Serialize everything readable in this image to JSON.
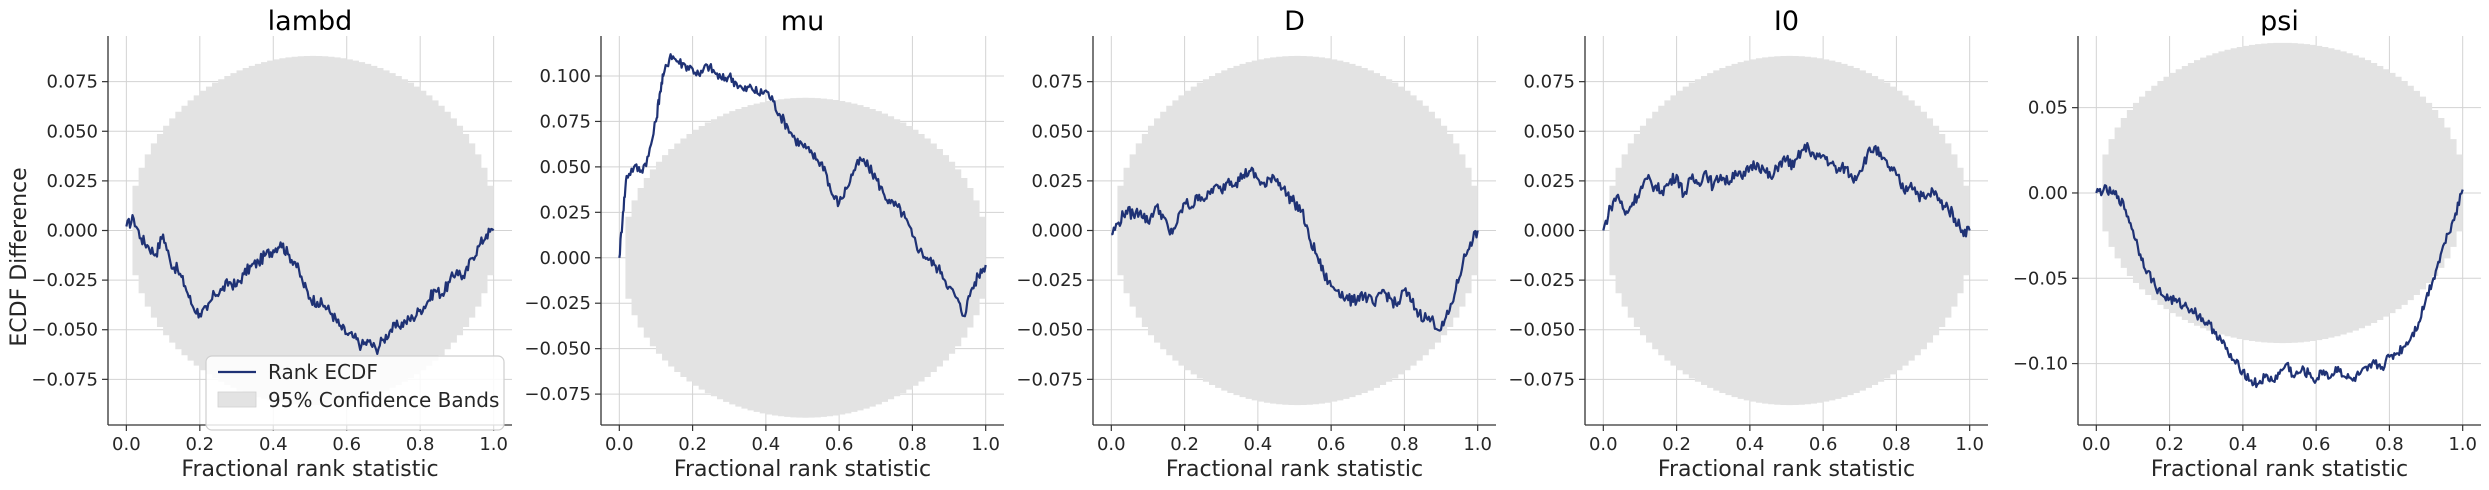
{
  "colors": {
    "ecdf": "#1f3275",
    "band": "#e3e3e3",
    "grid": "#d3d3d3"
  },
  "chart_data": {
    "type": "line",
    "shared_ylabel": "ECDF Difference",
    "xlabel": "Fractional rank statistic",
    "xlim": [
      -0.05,
      1.05
    ],
    "xticks": [
      0.0,
      0.2,
      0.4,
      0.6,
      0.8,
      1.0
    ],
    "xtick_labels": [
      "0.0",
      "0.2",
      "0.4",
      "0.6",
      "0.8",
      "1.0"
    ],
    "legend": {
      "placement": "lower-right",
      "entries": [
        "Rank ECDF",
        "95% Confidence Bands"
      ]
    },
    "panels": [
      {
        "title": "lambd",
        "ylim": [
          -0.098,
          0.098
        ],
        "yticks": [
          -0.075,
          -0.05,
          -0.025,
          0.0,
          0.025,
          0.05,
          0.075
        ],
        "ytick_labels": [
          "−0.075",
          "−0.050",
          "−0.025",
          "0.000",
          "0.025",
          "0.050",
          "0.075"
        ],
        "band_halfwidth": 0.088,
        "band_center": [
          [
            0.0,
            0.0
          ],
          [
            1.0,
            0.0
          ]
        ],
        "ecdf": [
          [
            0.0,
            0.002
          ],
          [
            0.02,
            0.006
          ],
          [
            0.04,
            -0.004
          ],
          [
            0.06,
            -0.008
          ],
          [
            0.08,
            -0.012
          ],
          [
            0.1,
            -0.002
          ],
          [
            0.12,
            -0.016
          ],
          [
            0.14,
            -0.02
          ],
          [
            0.16,
            -0.028
          ],
          [
            0.18,
            -0.038
          ],
          [
            0.2,
            -0.042
          ],
          [
            0.22,
            -0.04
          ],
          [
            0.24,
            -0.032
          ],
          [
            0.26,
            -0.03
          ],
          [
            0.28,
            -0.026
          ],
          [
            0.3,
            -0.028
          ],
          [
            0.32,
            -0.022
          ],
          [
            0.34,
            -0.018
          ],
          [
            0.36,
            -0.016
          ],
          [
            0.38,
            -0.012
          ],
          [
            0.4,
            -0.01
          ],
          [
            0.42,
            -0.006
          ],
          [
            0.44,
            -0.012
          ],
          [
            0.46,
            -0.016
          ],
          [
            0.48,
            -0.026
          ],
          [
            0.5,
            -0.034
          ],
          [
            0.52,
            -0.036
          ],
          [
            0.54,
            -0.038
          ],
          [
            0.56,
            -0.042
          ],
          [
            0.58,
            -0.048
          ],
          [
            0.6,
            -0.052
          ],
          [
            0.62,
            -0.054
          ],
          [
            0.64,
            -0.058
          ],
          [
            0.66,
            -0.056
          ],
          [
            0.68,
            -0.06
          ],
          [
            0.7,
            -0.055
          ],
          [
            0.72,
            -0.05
          ],
          [
            0.74,
            -0.048
          ],
          [
            0.76,
            -0.046
          ],
          [
            0.78,
            -0.044
          ],
          [
            0.8,
            -0.04
          ],
          [
            0.82,
            -0.036
          ],
          [
            0.84,
            -0.03
          ],
          [
            0.86,
            -0.032
          ],
          [
            0.88,
            -0.026
          ],
          [
            0.9,
            -0.02
          ],
          [
            0.92,
            -0.024
          ],
          [
            0.94,
            -0.014
          ],
          [
            0.96,
            -0.008
          ],
          [
            0.98,
            -0.002
          ],
          [
            1.0,
            0.0
          ]
        ]
      },
      {
        "title": "mu",
        "ylim": [
          -0.092,
          0.122
        ],
        "yticks": [
          -0.075,
          -0.05,
          -0.025,
          0.0,
          0.025,
          0.05,
          0.075,
          0.1
        ],
        "ytick_labels": [
          "−0.075",
          "−0.050",
          "−0.025",
          "0.000",
          "0.025",
          "0.050",
          "0.075",
          "0.100"
        ],
        "band_halfwidth": 0.088,
        "band_center": [
          [
            0.0,
            0.0
          ],
          [
            1.0,
            0.0
          ]
        ],
        "ecdf": [
          [
            0.0,
            0.0
          ],
          [
            0.01,
            0.025
          ],
          [
            0.02,
            0.045
          ],
          [
            0.04,
            0.05
          ],
          [
            0.06,
            0.048
          ],
          [
            0.08,
            0.056
          ],
          [
            0.1,
            0.075
          ],
          [
            0.11,
            0.09
          ],
          [
            0.12,
            0.1
          ],
          [
            0.14,
            0.112
          ],
          [
            0.16,
            0.108
          ],
          [
            0.18,
            0.106
          ],
          [
            0.2,
            0.104
          ],
          [
            0.22,
            0.1
          ],
          [
            0.24,
            0.106
          ],
          [
            0.26,
            0.102
          ],
          [
            0.28,
            0.098
          ],
          [
            0.3,
            0.1
          ],
          [
            0.32,
            0.096
          ],
          [
            0.34,
            0.092
          ],
          [
            0.36,
            0.094
          ],
          [
            0.38,
            0.09
          ],
          [
            0.4,
            0.092
          ],
          [
            0.42,
            0.086
          ],
          [
            0.44,
            0.078
          ],
          [
            0.46,
            0.072
          ],
          [
            0.48,
            0.065
          ],
          [
            0.5,
            0.062
          ],
          [
            0.52,
            0.058
          ],
          [
            0.54,
            0.054
          ],
          [
            0.56,
            0.05
          ],
          [
            0.58,
            0.035
          ],
          [
            0.6,
            0.03
          ],
          [
            0.62,
            0.038
          ],
          [
            0.64,
            0.048
          ],
          [
            0.66,
            0.054
          ],
          [
            0.68,
            0.05
          ],
          [
            0.7,
            0.044
          ],
          [
            0.72,
            0.036
          ],
          [
            0.74,
            0.03
          ],
          [
            0.76,
            0.028
          ],
          [
            0.78,
            0.022
          ],
          [
            0.8,
            0.012
          ],
          [
            0.82,
            0.004
          ],
          [
            0.84,
            0.0
          ],
          [
            0.86,
            -0.004
          ],
          [
            0.88,
            -0.008
          ],
          [
            0.9,
            -0.016
          ],
          [
            0.92,
            -0.022
          ],
          [
            0.94,
            -0.032
          ],
          [
            0.96,
            -0.018
          ],
          [
            0.98,
            -0.01
          ],
          [
            1.0,
            -0.004
          ]
        ]
      },
      {
        "title": "D",
        "ylim": [
          -0.098,
          0.098
        ],
        "yticks": [
          -0.075,
          -0.05,
          -0.025,
          0.0,
          0.025,
          0.05,
          0.075
        ],
        "ytick_labels": [
          "−0.075",
          "−0.050",
          "−0.025",
          "0.000",
          "0.025",
          "0.050",
          "0.075"
        ],
        "band_halfwidth": 0.088,
        "band_center": [
          [
            0.0,
            0.0
          ],
          [
            1.0,
            0.0
          ]
        ],
        "ecdf": [
          [
            0.0,
            -0.002
          ],
          [
            0.02,
            0.004
          ],
          [
            0.04,
            0.01
          ],
          [
            0.06,
            0.008
          ],
          [
            0.08,
            0.01
          ],
          [
            0.1,
            0.004
          ],
          [
            0.12,
            0.012
          ],
          [
            0.14,
            0.008
          ],
          [
            0.16,
            -0.002
          ],
          [
            0.18,
            0.004
          ],
          [
            0.2,
            0.014
          ],
          [
            0.22,
            0.012
          ],
          [
            0.24,
            0.018
          ],
          [
            0.26,
            0.016
          ],
          [
            0.28,
            0.022
          ],
          [
            0.3,
            0.02
          ],
          [
            0.32,
            0.026
          ],
          [
            0.34,
            0.024
          ],
          [
            0.36,
            0.028
          ],
          [
            0.38,
            0.03
          ],
          [
            0.4,
            0.026
          ],
          [
            0.42,
            0.022
          ],
          [
            0.44,
            0.028
          ],
          [
            0.46,
            0.024
          ],
          [
            0.48,
            0.018
          ],
          [
            0.5,
            0.014
          ],
          [
            0.52,
            0.01
          ],
          [
            0.54,
            -0.004
          ],
          [
            0.56,
            -0.012
          ],
          [
            0.58,
            -0.022
          ],
          [
            0.6,
            -0.028
          ],
          [
            0.62,
            -0.03
          ],
          [
            0.64,
            -0.034
          ],
          [
            0.66,
            -0.036
          ],
          [
            0.68,
            -0.032
          ],
          [
            0.7,
            -0.034
          ],
          [
            0.72,
            -0.038
          ],
          [
            0.74,
            -0.03
          ],
          [
            0.76,
            -0.034
          ],
          [
            0.78,
            -0.038
          ],
          [
            0.8,
            -0.03
          ],
          [
            0.82,
            -0.036
          ],
          [
            0.84,
            -0.042
          ],
          [
            0.86,
            -0.044
          ],
          [
            0.88,
            -0.046
          ],
          [
            0.9,
            -0.05
          ],
          [
            0.92,
            -0.042
          ],
          [
            0.94,
            -0.03
          ],
          [
            0.96,
            -0.016
          ],
          [
            0.98,
            -0.006
          ],
          [
            1.0,
            0.0
          ]
        ]
      },
      {
        "title": "I0",
        "ylim": [
          -0.098,
          0.098
        ],
        "yticks": [
          -0.075,
          -0.05,
          -0.025,
          0.0,
          0.025,
          0.05,
          0.075
        ],
        "ytick_labels": [
          "−0.075",
          "−0.050",
          "−0.025",
          "0.000",
          "0.025",
          "0.050",
          "0.075"
        ],
        "band_halfwidth": 0.088,
        "band_center": [
          [
            0.0,
            0.0
          ],
          [
            1.0,
            0.0
          ]
        ],
        "ecdf": [
          [
            0.0,
            0.0
          ],
          [
            0.02,
            0.012
          ],
          [
            0.04,
            0.018
          ],
          [
            0.06,
            0.008
          ],
          [
            0.08,
            0.014
          ],
          [
            0.1,
            0.02
          ],
          [
            0.12,
            0.026
          ],
          [
            0.14,
            0.022
          ],
          [
            0.16,
            0.02
          ],
          [
            0.18,
            0.024
          ],
          [
            0.2,
            0.028
          ],
          [
            0.22,
            0.018
          ],
          [
            0.24,
            0.026
          ],
          [
            0.26,
            0.024
          ],
          [
            0.28,
            0.03
          ],
          [
            0.3,
            0.022
          ],
          [
            0.32,
            0.028
          ],
          [
            0.34,
            0.024
          ],
          [
            0.36,
            0.03
          ],
          [
            0.38,
            0.026
          ],
          [
            0.4,
            0.032
          ],
          [
            0.42,
            0.034
          ],
          [
            0.44,
            0.03
          ],
          [
            0.46,
            0.026
          ],
          [
            0.48,
            0.034
          ],
          [
            0.5,
            0.036
          ],
          [
            0.52,
            0.032
          ],
          [
            0.54,
            0.04
          ],
          [
            0.56,
            0.042
          ],
          [
            0.58,
            0.036
          ],
          [
            0.6,
            0.038
          ],
          [
            0.62,
            0.034
          ],
          [
            0.64,
            0.03
          ],
          [
            0.66,
            0.032
          ],
          [
            0.68,
            0.026
          ],
          [
            0.7,
            0.03
          ],
          [
            0.72,
            0.038
          ],
          [
            0.74,
            0.042
          ],
          [
            0.76,
            0.036
          ],
          [
            0.78,
            0.032
          ],
          [
            0.8,
            0.028
          ],
          [
            0.82,
            0.02
          ],
          [
            0.84,
            0.024
          ],
          [
            0.86,
            0.018
          ],
          [
            0.88,
            0.016
          ],
          [
            0.9,
            0.02
          ],
          [
            0.92,
            0.014
          ],
          [
            0.94,
            0.012
          ],
          [
            0.96,
            0.006
          ],
          [
            0.98,
            0.0
          ],
          [
            1.0,
            0.0
          ]
        ]
      },
      {
        "title": "psi",
        "ylim": [
          -0.136,
          0.092
        ],
        "yticks": [
          -0.1,
          -0.05,
          0.0,
          0.05
        ],
        "ytick_labels": [
          "−0.10",
          "−0.05",
          "0.00",
          "0.05"
        ],
        "band_halfwidth": 0.088,
        "band_center": [
          [
            0.0,
            0.0
          ],
          [
            1.0,
            0.0
          ]
        ],
        "ecdf": [
          [
            0.0,
            0.0
          ],
          [
            0.02,
            0.002
          ],
          [
            0.04,
            0.0
          ],
          [
            0.06,
            -0.002
          ],
          [
            0.08,
            -0.01
          ],
          [
            0.1,
            -0.022
          ],
          [
            0.12,
            -0.036
          ],
          [
            0.14,
            -0.046
          ],
          [
            0.16,
            -0.054
          ],
          [
            0.18,
            -0.06
          ],
          [
            0.2,
            -0.062
          ],
          [
            0.22,
            -0.064
          ],
          [
            0.24,
            -0.066
          ],
          [
            0.26,
            -0.068
          ],
          [
            0.28,
            -0.072
          ],
          [
            0.3,
            -0.076
          ],
          [
            0.32,
            -0.08
          ],
          [
            0.34,
            -0.086
          ],
          [
            0.36,
            -0.094
          ],
          [
            0.38,
            -0.1
          ],
          [
            0.4,
            -0.104
          ],
          [
            0.42,
            -0.11
          ],
          [
            0.44,
            -0.112
          ],
          [
            0.46,
            -0.108
          ],
          [
            0.48,
            -0.11
          ],
          [
            0.5,
            -0.106
          ],
          [
            0.52,
            -0.1
          ],
          [
            0.54,
            -0.108
          ],
          [
            0.56,
            -0.104
          ],
          [
            0.58,
            -0.106
          ],
          [
            0.6,
            -0.11
          ],
          [
            0.62,
            -0.104
          ],
          [
            0.64,
            -0.108
          ],
          [
            0.66,
            -0.102
          ],
          [
            0.68,
            -0.108
          ],
          [
            0.7,
            -0.11
          ],
          [
            0.72,
            -0.106
          ],
          [
            0.74,
            -0.104
          ],
          [
            0.76,
            -0.1
          ],
          [
            0.78,
            -0.102
          ],
          [
            0.8,
            -0.096
          ],
          [
            0.82,
            -0.094
          ],
          [
            0.84,
            -0.09
          ],
          [
            0.86,
            -0.084
          ],
          [
            0.88,
            -0.076
          ],
          [
            0.9,
            -0.062
          ],
          [
            0.92,
            -0.05
          ],
          [
            0.94,
            -0.036
          ],
          [
            0.96,
            -0.024
          ],
          [
            0.98,
            -0.012
          ],
          [
            1.0,
            0.002
          ]
        ]
      }
    ]
  }
}
